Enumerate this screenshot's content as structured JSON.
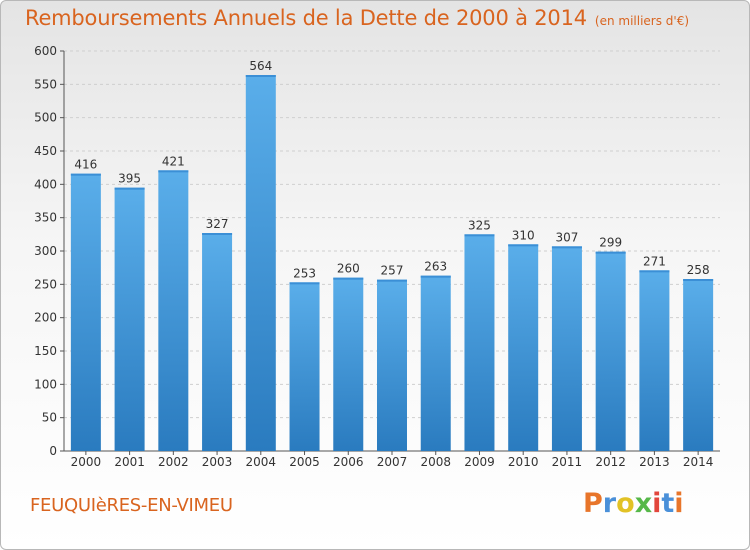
{
  "title": "Remboursements Annuels de la Dette de 2000 à 2014",
  "subtitle": "(en milliers d'€)",
  "commune": "FEUQUIèRES-EN-VIMEU",
  "logo": {
    "letters": [
      "P",
      "r",
      "o",
      "x",
      "i",
      "t",
      "i"
    ]
  },
  "colors": {
    "accent": "#d9641f",
    "bar_light": "#5aaeea",
    "bar_dark": "#2a7bbf"
  },
  "chart_data": {
    "type": "bar",
    "categories": [
      "2000",
      "2001",
      "2002",
      "2003",
      "2004",
      "2005",
      "2006",
      "2007",
      "2008",
      "2009",
      "2010",
      "2011",
      "2012",
      "2013",
      "2014"
    ],
    "values": [
      416,
      395,
      421,
      327,
      564,
      253,
      260,
      257,
      263,
      325,
      310,
      307,
      299,
      271,
      258
    ],
    "ylim": [
      0,
      600
    ],
    "yticks": [
      0,
      50,
      100,
      150,
      200,
      250,
      300,
      350,
      400,
      450,
      500,
      550,
      600
    ],
    "grid": true,
    "data_labels": true
  }
}
